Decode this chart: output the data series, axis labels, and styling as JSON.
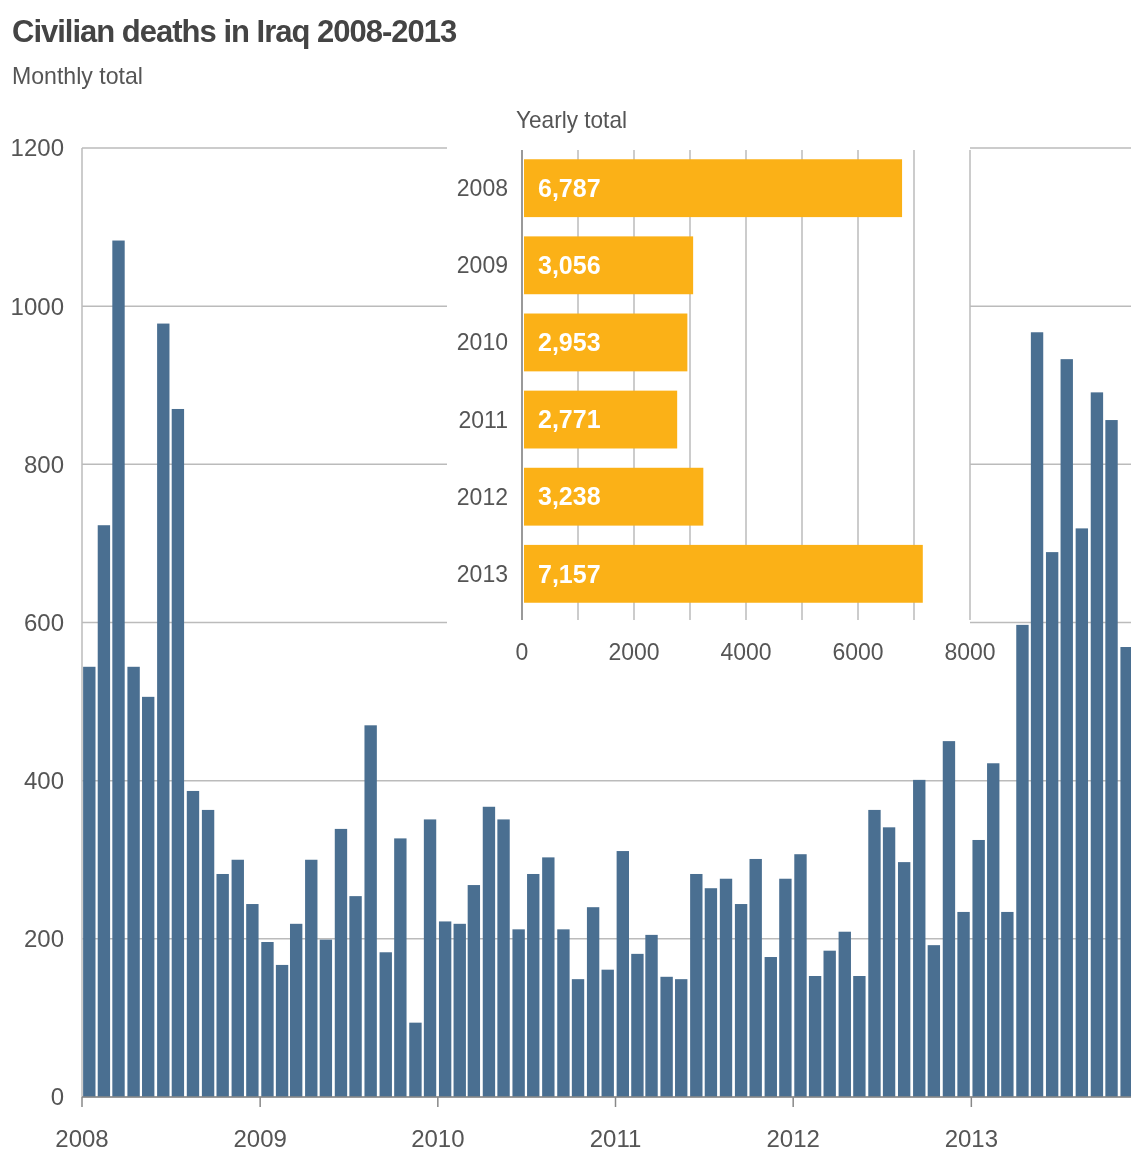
{
  "chart_data": [
    {
      "type": "bar",
      "title": "Civilian deaths in Iraq 2008-2013",
      "subtitle": "Monthly total",
      "x": [
        "2008-01-16",
        "2008-02-15",
        "2008-03-16",
        "2008-04-16",
        "2008-05-16",
        "2008-06-16",
        "2008-07-16",
        "2008-08-16",
        "2008-09-16",
        "2008-10-16",
        "2008-11-16",
        "2008-12-16",
        "2009-01-16",
        "2009-02-15",
        "2009-03-16",
        "2009-04-16",
        "2009-05-16",
        "2009-06-16",
        "2009-07-16",
        "2009-08-16",
        "2009-09-16",
        "2009-10-16",
        "2009-11-16",
        "2009-12-16",
        "2010-01-16",
        "2010-02-15",
        "2010-03-16",
        "2010-04-16",
        "2010-05-16",
        "2010-06-16",
        "2010-07-16",
        "2010-08-16",
        "2010-09-16",
        "2010-10-16",
        "2010-11-16",
        "2010-12-16",
        "2011-01-16",
        "2011-02-15",
        "2011-03-16",
        "2011-04-16",
        "2011-05-16",
        "2011-06-16",
        "2011-07-16",
        "2011-08-16",
        "2011-09-16",
        "2011-10-16",
        "2011-11-16",
        "2011-12-16",
        "2012-01-16",
        "2012-02-15",
        "2012-03-16",
        "2012-04-16",
        "2012-05-16",
        "2012-06-16",
        "2012-07-16",
        "2012-08-16",
        "2012-09-16",
        "2012-10-16",
        "2012-11-16",
        "2012-12-16",
        "2013-01-16",
        "2013-02-15",
        "2013-03-16",
        "2013-04-16",
        "2013-05-16",
        "2013-06-16",
        "2013-07-16",
        "2013-08-16",
        "2013-09-16",
        "2013-10-16",
        "2013-11-16"
      ],
      "values": [
        544,
        723,
        1083,
        544,
        506,
        978,
        870,
        387,
        363,
        282,
        300,
        244,
        196,
        167,
        219,
        300,
        199,
        339,
        254,
        470,
        183,
        327,
        94,
        351,
        222,
        219,
        268,
        367,
        351,
        212,
        282,
        303,
        212,
        149,
        240,
        161,
        311,
        181,
        205,
        152,
        149,
        282,
        264,
        276,
        244,
        301,
        177,
        276,
        307,
        153,
        185,
        209,
        153,
        363,
        341,
        297,
        401,
        192,
        450,
        234,
        325,
        422,
        234,
        597,
        967,
        689,
        933,
        719,
        891,
        856,
        569
      ],
      "color": "#4a6f91",
      "xlim": [
        "2008-01-01",
        "2013-11-25"
      ],
      "xticks": [
        {
          "value": "2008-01-01",
          "label": "2008"
        },
        {
          "value": "2009-01-01",
          "label": "2009"
        },
        {
          "value": "2010-01-01",
          "label": "2010"
        },
        {
          "value": "2011-01-01",
          "label": "2011"
        },
        {
          "value": "2012-01-01",
          "label": "2012"
        },
        {
          "value": "2013-01-01",
          "label": "2013"
        }
      ],
      "ylim": [
        0,
        1200
      ],
      "yticks": [
        0,
        200,
        400,
        600,
        800,
        1000,
        1200
      ],
      "grid": "y"
    },
    {
      "type": "bar",
      "title": "Yearly total",
      "orientation": "horizontal",
      "categories": [
        "2008",
        "2009",
        "2010",
        "2011",
        "2012",
        "2013"
      ],
      "values": [
        6787,
        3056,
        2953,
        2771,
        3238,
        7157
      ],
      "color": "#fbb117",
      "data_labels": true,
      "value_labels": [
        "6,787",
        "3,056",
        "2,953",
        "2,771",
        "3,238",
        "7,157"
      ],
      "xlim": [
        0,
        8000
      ],
      "xticks": [
        0,
        {
          "value": 1000,
          "label": null
        },
        2000,
        {
          "value": 3000,
          "label": null
        },
        4000,
        {
          "value": 5000,
          "label": null
        },
        6000,
        {
          "value": 7000,
          "label": null
        },
        8000
      ],
      "grid": "x"
    }
  ]
}
